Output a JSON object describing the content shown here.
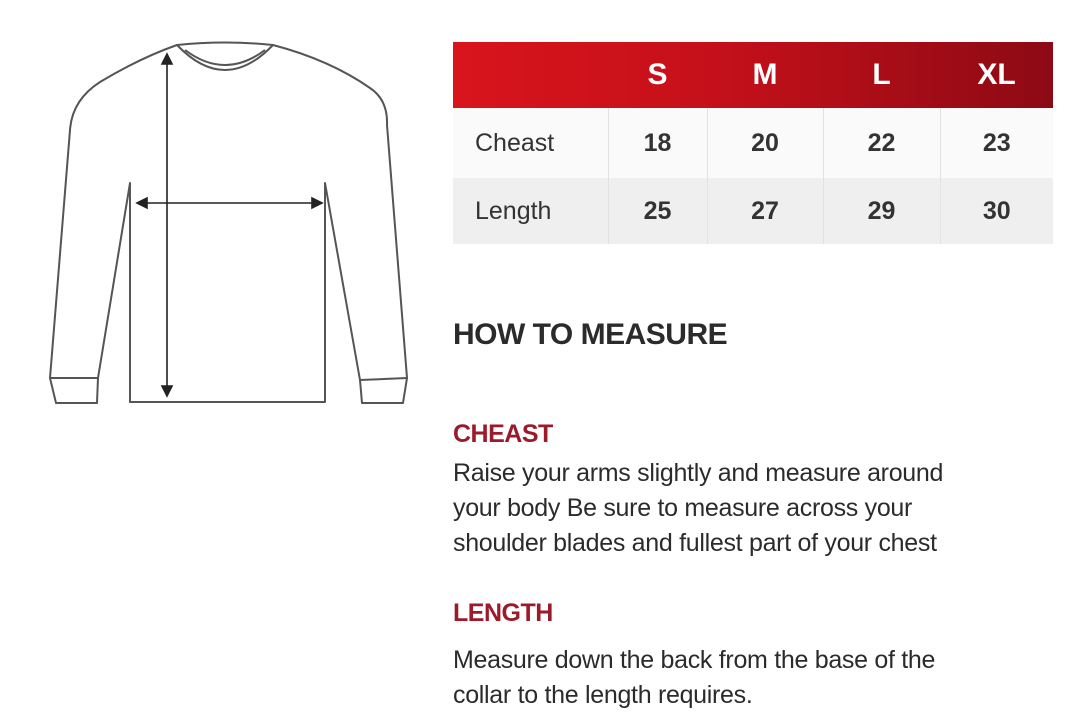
{
  "size_table": {
    "headers": [
      "",
      "S",
      "M",
      "L",
      "XL"
    ],
    "rows": [
      {
        "label": "Cheast",
        "values": [
          "18",
          "20",
          "22",
          "23"
        ]
      },
      {
        "label": "Length",
        "values": [
          "25",
          "27",
          "29",
          "30"
        ]
      }
    ]
  },
  "how_to": {
    "title": "HOW TO MEASURE",
    "sections": [
      {
        "heading": "CHEAST",
        "lines": [
          "Raise your arms slightly and measure around",
          "your body Be sure to measure across your",
          "shoulder blades and fullest part of your chest"
        ]
      },
      {
        "heading": "LENGTH",
        "lines": [
          "Measure down the back from the base of the",
          "collar to the length requires."
        ]
      }
    ]
  },
  "colors": {
    "header_red": "#c4101a",
    "heading_red": "#9b1b2a"
  },
  "illustration": {
    "icon": "sweatshirt-measurement-diagram"
  }
}
